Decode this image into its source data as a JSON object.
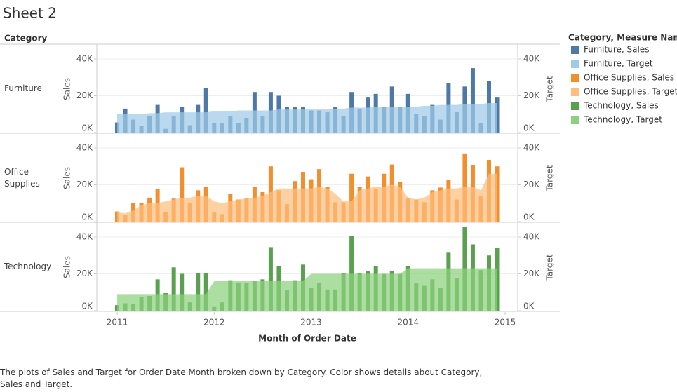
{
  "title": "Sheet 2",
  "row_header": "Category",
  "xlabel": "Month of Order Date",
  "legend_title": "Category, Measure Names",
  "caption": "The plots of Sales and Target for Order Date Month broken down by Category.  Color shows details about Category, Sales and Target.",
  "x": [
    "2011-01",
    "2011-02",
    "2011-03",
    "2011-04",
    "2011-05",
    "2011-06",
    "2011-07",
    "2011-08",
    "2011-09",
    "2011-10",
    "2011-11",
    "2011-12",
    "2012-01",
    "2012-02",
    "2012-03",
    "2012-04",
    "2012-05",
    "2012-06",
    "2012-07",
    "2012-08",
    "2012-09",
    "2012-10",
    "2012-11",
    "2012-12",
    "2013-01",
    "2013-02",
    "2013-03",
    "2013-04",
    "2013-05",
    "2013-06",
    "2013-07",
    "2013-08",
    "2013-09",
    "2013-10",
    "2013-11",
    "2013-12",
    "2014-01",
    "2014-02",
    "2014-03",
    "2014-04",
    "2014-05",
    "2014-06",
    "2014-07",
    "2014-08",
    "2014-09",
    "2014-10",
    "2014-11",
    "2014-12"
  ],
  "xlim": [
    2010.79,
    2015.13
  ],
  "xticks": [
    2011,
    2012,
    2013,
    2014,
    2015
  ],
  "chart_data": [
    {
      "type": "bar",
      "category": "Furniture",
      "ylabel": "Sales",
      "y2label": "Target",
      "ylim": [
        0,
        47600
      ],
      "yticks": [
        {
          "value": 0,
          "label": "0K"
        },
        {
          "value": 20000,
          "label": "20K"
        },
        {
          "value": 40000,
          "label": "40K"
        }
      ],
      "y2lim": [
        0,
        47600
      ],
      "y2ticks": [
        {
          "value": 0,
          "label": "0K"
        },
        {
          "value": 20000,
          "label": "20K"
        },
        {
          "value": 40000,
          "label": "40K"
        }
      ],
      "grid": true,
      "series": [
        {
          "name": "Furniture, Sales",
          "color": "#4e79a7",
          "mark": "bar",
          "values": [
            5500,
            13000,
            7000,
            3500,
            9000,
            15000,
            2000,
            9000,
            14000,
            4000,
            15000,
            24000,
            5000,
            5000,
            9000,
            5000,
            8000,
            22000,
            9000,
            22000,
            20000,
            14000,
            14000,
            14000,
            12000,
            12000,
            11000,
            14000,
            9000,
            22000,
            13000,
            19000,
            21000,
            14000,
            25000,
            14000,
            21000,
            10000,
            9000,
            15000,
            7000,
            27000,
            11000,
            25000,
            35000,
            5000,
            28000,
            19000
          ]
        },
        {
          "name": "Furniture, Target",
          "color": "#a0cbe8",
          "mark": "area",
          "axis": "y2",
          "values": [
            10000,
            10000,
            10000,
            10000,
            10500,
            10500,
            11000,
            11000,
            11000,
            11000,
            11000,
            11000,
            11500,
            11500,
            11500,
            12000,
            12000,
            12000,
            12000,
            12000,
            12500,
            12500,
            12500,
            12500,
            12500,
            12500,
            12500,
            13000,
            13000,
            13500,
            13500,
            13500,
            14000,
            14000,
            14000,
            14000,
            14000,
            14000,
            14500,
            14500,
            15000,
            15000,
            15000,
            15500,
            15500,
            15500,
            16000,
            16000
          ]
        }
      ]
    },
    {
      "type": "bar",
      "category": "Office Supplies",
      "ylabel": "Sales",
      "y2label": "Target",
      "ylim": [
        0,
        47600
      ],
      "yticks": [
        {
          "value": 0,
          "label": "0K"
        },
        {
          "value": 20000,
          "label": "20K"
        },
        {
          "value": 40000,
          "label": "40K"
        }
      ],
      "y2lim": [
        0,
        47600
      ],
      "y2ticks": [
        {
          "value": 0,
          "label": "0K"
        },
        {
          "value": 20000,
          "label": "20K"
        },
        {
          "value": 40000,
          "label": "40K"
        }
      ],
      "grid": true,
      "series": [
        {
          "name": "Office Supplies, Sales",
          "color": "#f28e2b",
          "mark": "bar",
          "values": [
            5500,
            3500,
            10000,
            10000,
            13000,
            17500,
            5000,
            12500,
            29500,
            10000,
            17000,
            19000,
            5000,
            4000,
            15000,
            12000,
            12500,
            19000,
            16000,
            30000,
            17000,
            9500,
            22000,
            27000,
            23000,
            28500,
            19000,
            10500,
            10500,
            26000,
            19000,
            24500,
            18000,
            26000,
            31000,
            21500,
            12500,
            12000,
            10500,
            17000,
            18500,
            22500,
            12000,
            37000,
            30500,
            14000,
            33500,
            30000
          ]
        },
        {
          "name": "Office Supplies, Target",
          "color": "#ffbe7d",
          "mark": "area",
          "axis": "y2",
          "values": [
            5000,
            4500,
            6000,
            9000,
            10000,
            10000,
            11000,
            12000,
            13000,
            13000,
            14000,
            14000,
            11000,
            10000,
            11000,
            12000,
            12500,
            13000,
            14000,
            16000,
            18000,
            18000,
            18000,
            18000,
            18000,
            19000,
            18000,
            15000,
            11000,
            11000,
            17000,
            18000,
            19000,
            19000,
            20000,
            19000,
            13000,
            12000,
            13000,
            16000,
            17000,
            18000,
            18000,
            19000,
            19000,
            17000,
            26000,
            26000
          ]
        }
      ]
    },
    {
      "type": "bar",
      "category": "Technology",
      "ylabel": "Sales",
      "y2label": "Target",
      "ylim": [
        0,
        47600
      ],
      "yticks": [
        {
          "value": 0,
          "label": "0K"
        },
        {
          "value": 20000,
          "label": "20K"
        },
        {
          "value": 40000,
          "label": "40K"
        }
      ],
      "y2lim": [
        0,
        47600
      ],
      "y2ticks": [
        {
          "value": 0,
          "label": "0K"
        },
        {
          "value": 20000,
          "label": "20K"
        },
        {
          "value": 40000,
          "label": "40K"
        }
      ],
      "grid": true,
      "series": [
        {
          "name": "Technology, Sales",
          "color": "#59a14f",
          "mark": "bar",
          "values": [
            3000,
            4000,
            3500,
            7500,
            8000,
            17000,
            9500,
            23500,
            20000,
            4500,
            20500,
            20500,
            2000,
            4500,
            16500,
            15000,
            15000,
            16000,
            17000,
            34500,
            24000,
            11000,
            16500,
            25000,
            12500,
            15000,
            11500,
            11500,
            20500,
            40500,
            20500,
            21500,
            24000,
            20000,
            21500,
            20000,
            24000,
            15000,
            13500,
            17000,
            12500,
            31500,
            17500,
            45500,
            36000,
            22000,
            30000,
            34000
          ]
        },
        {
          "name": "Technology, Target",
          "color": "#8cd17d",
          "mark": "area",
          "axis": "y2",
          "values": [
            9000,
            9000,
            9000,
            9000,
            9000,
            9000,
            9000,
            9000,
            9000,
            9000,
            9000,
            9000,
            16000,
            16000,
            16000,
            16000,
            16000,
            16000,
            16000,
            16000,
            16000,
            16000,
            16000,
            16000,
            20000,
            20000,
            20000,
            20000,
            20000,
            20000,
            20000,
            20000,
            20000,
            20000,
            20000,
            20000,
            23000,
            23000,
            23000,
            23000,
            23000,
            23000,
            23000,
            23000,
            23000,
            23000,
            23000,
            23000
          ]
        }
      ]
    }
  ]
}
